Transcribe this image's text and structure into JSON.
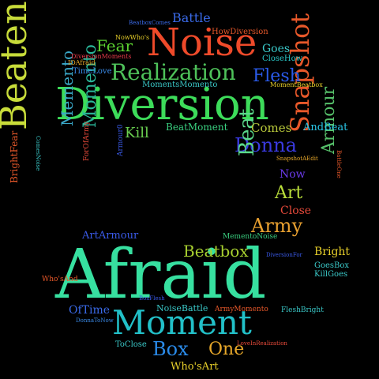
{
  "words": [
    {
      "text": "Afraid",
      "color": "#37e0a0"
    },
    {
      "text": "Diversion",
      "color": "#3ddc5a"
    },
    {
      "text": "Moment",
      "color": "#22c0c8"
    },
    {
      "text": "Noise",
      "color": "#ef4a2a"
    },
    {
      "text": "Beaten",
      "color": "#c8dc3a"
    },
    {
      "text": "Realization",
      "color": "#4ec25a"
    },
    {
      "text": "Snapshot",
      "color": "#e8582a"
    },
    {
      "text": "Donna",
      "color": "#3a3ae0"
    },
    {
      "text": "Momento",
      "color": "#2ab89a"
    },
    {
      "text": "Memento",
      "color": "#3aa8c8"
    },
    {
      "text": "Armour",
      "color": "#56c06a"
    },
    {
      "text": "Army",
      "color": "#e8a030"
    },
    {
      "text": "Beat",
      "color": "#5ad88a"
    },
    {
      "text": "Art",
      "color": "#b8dc3a"
    },
    {
      "text": "Flesh",
      "color": "#2a5ae8"
    },
    {
      "text": "Beatbox",
      "color": "#a8d030"
    },
    {
      "text": "Box",
      "color": "#2a8ae8"
    },
    {
      "text": "One",
      "color": "#e8a82a"
    },
    {
      "text": "Fear",
      "color": "#5ad030"
    },
    {
      "text": "Kill",
      "color": "#6ad050"
    },
    {
      "text": "Comes",
      "color": "#b8c83a"
    },
    {
      "text": "Battle",
      "color": "#3a6ae8"
    },
    {
      "text": "Goes",
      "color": "#3ac8c8"
    },
    {
      "text": "Now",
      "color": "#6a3ae8"
    },
    {
      "text": "Close",
      "color": "#e84a3a"
    },
    {
      "text": "Bright",
      "color": "#e8d02a"
    },
    {
      "text": "ArtArmour",
      "color": "#3a5ae8"
    },
    {
      "text": "BeatMoment",
      "color": "#3ad080"
    },
    {
      "text": "AndBeat",
      "color": "#2ac8e8"
    },
    {
      "text": "OfTime",
      "color": "#3a6ae8"
    },
    {
      "text": "NoiseBattle",
      "color": "#3ac8c8"
    },
    {
      "text": "Who'sArt",
      "color": "#e8d02a"
    },
    {
      "text": "BrightFear",
      "color": "#e8582a"
    },
    {
      "text": "MomentsMomento",
      "color": "#3ac8c8"
    },
    {
      "text": "TimeLove",
      "color": "#3a8ae8"
    },
    {
      "text": "ClosеHow",
      "color": "#2ac8c8"
    },
    {
      "text": "HowDiversion",
      "color": "#e8582a"
    },
    {
      "text": "NowWho's",
      "color": "#e8d02a"
    },
    {
      "text": "DiversionMoments",
      "color": "#e83a4a"
    },
    {
      "text": "IOAfraid",
      "color": "#e8a82a"
    },
    {
      "text": "BeatboxComes",
      "color": "#3a6ae8"
    },
    {
      "text": "MomentBeatbox",
      "color": "#e8d02a"
    },
    {
      "text": "SnapshotAEdit",
      "color": "#e8a82a"
    },
    {
      "text": "MementoNoise",
      "color": "#3ad080"
    },
    {
      "text": "DiversionFor",
      "color": "#3a5ae8"
    },
    {
      "text": "GoesBox",
      "color": "#3ac8c8"
    },
    {
      "text": "KillGoes",
      "color": "#3ac8c8"
    },
    {
      "text": "Who'sAnd",
      "color": "#e8582a"
    },
    {
      "text": "BoxFlesh",
      "color": "#3a5ae8"
    },
    {
      "text": "ArmyMomento",
      "color": "#e8582a"
    },
    {
      "text": "FleshBright",
      "color": "#3ac8c8"
    },
    {
      "text": "DonnaToNow",
      "color": "#3a8ae8"
    },
    {
      "text": "ToClose",
      "color": "#3ac8c8"
    },
    {
      "text": "LoveInRealization",
      "color": "#e84a3a"
    },
    {
      "text": "ComesNoise",
      "color": "#3ac8c8"
    },
    {
      "text": "ForOfArmy",
      "color": "#e84a3a"
    },
    {
      "text": "Armour0",
      "color": "#3a5ae8"
    },
    {
      "text": "BattleOne",
      "color": "#e8582a"
    }
  ]
}
